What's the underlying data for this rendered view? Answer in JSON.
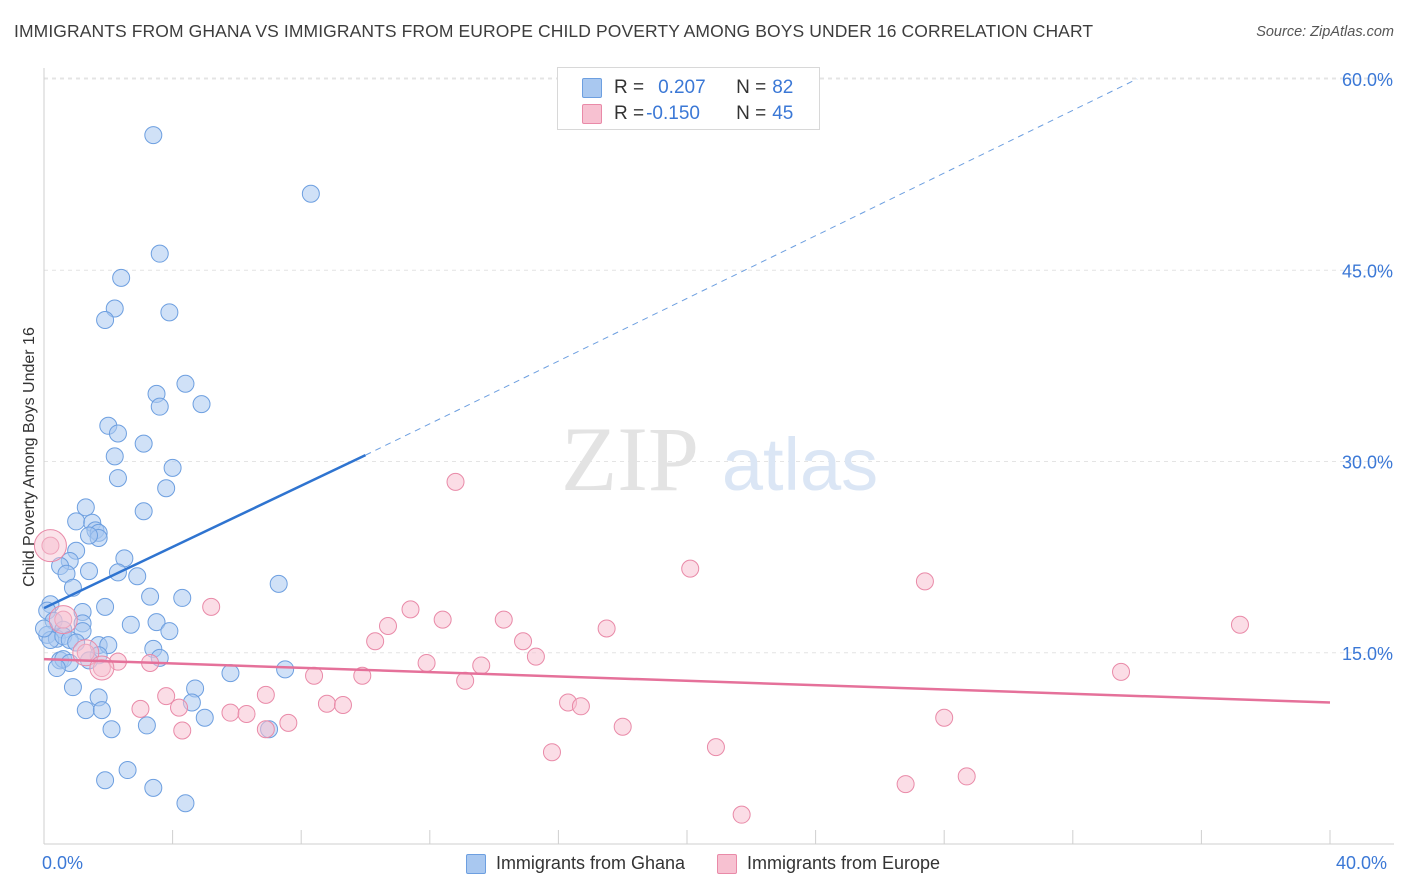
{
  "header": {
    "title": "IMMIGRANTS FROM GHANA VS IMMIGRANTS FROM EUROPE CHILD POVERTY AMONG BOYS UNDER 16 CORRELATION CHART",
    "source": "Source: ZipAtlas.com"
  },
  "watermark": {
    "zip": "ZIP",
    "atlas": "atlas"
  },
  "legend": {
    "rows": [
      {
        "r_label": "R = ",
        "r_value": "0.207",
        "n_label": "N = ",
        "n_value": "82",
        "color": "#a9c8f0",
        "border": "#6d9fe0"
      },
      {
        "r_label": "R = ",
        "r_value": "-0.150",
        "n_label": "N = ",
        "n_value": "45",
        "color": "#f7c1d1",
        "border": "#e98aa8"
      }
    ]
  },
  "bottom_legend": {
    "items": [
      {
        "label": "Immigrants from Ghana",
        "color": "#a9c8f0",
        "border": "#6d9fe0"
      },
      {
        "label": "Immigrants from Europe",
        "color": "#f7c1d1",
        "border": "#e98aa8"
      }
    ]
  },
  "axis": {
    "x_tick_min": "0.0%",
    "x_tick_max": "40.0%",
    "y_ticks": [
      "15.0%",
      "30.0%",
      "45.0%",
      "60.0%"
    ],
    "y_title": "Child Poverty Among Boys Under 16"
  },
  "chart_data": {
    "type": "scatter",
    "title": "IMMIGRANTS FROM GHANA VS IMMIGRANTS FROM EUROPE CHILD POVERTY AMONG BOYS UNDER 16 CORRELATION CHART",
    "xlabel": "",
    "ylabel": "Child Poverty Among Boys Under 16",
    "xlim": [
      0,
      40
    ],
    "ylim": [
      0,
      63
    ],
    "x_unit": "%",
    "y_unit": "%",
    "y_ticks": [
      15,
      30,
      45,
      60
    ],
    "grid": true,
    "legend_position": "bottom-center",
    "series": [
      {
        "name": "Immigrants from Ghana",
        "color": "#6d9fe0",
        "fill": "#a9c8f0",
        "r": 0.207,
        "n": 82,
        "trend": {
          "x": [
            0,
            10
          ],
          "y": [
            18.5,
            30.5
          ],
          "extended_to": [
            34,
            60
          ]
        },
        "points": [
          [
            3.4,
            55.6
          ],
          [
            8.3,
            51.0
          ],
          [
            3.6,
            46.3
          ],
          [
            2.4,
            44.4
          ],
          [
            2.2,
            42.0
          ],
          [
            3.9,
            41.7
          ],
          [
            1.9,
            41.1
          ],
          [
            4.4,
            36.1
          ],
          [
            3.5,
            35.3
          ],
          [
            4.9,
            34.5
          ],
          [
            3.6,
            34.3
          ],
          [
            2.0,
            32.8
          ],
          [
            2.3,
            32.2
          ],
          [
            3.1,
            31.4
          ],
          [
            2.2,
            30.4
          ],
          [
            4.0,
            29.5
          ],
          [
            2.3,
            28.7
          ],
          [
            3.8,
            27.9
          ],
          [
            1.3,
            26.4
          ],
          [
            3.1,
            26.1
          ],
          [
            1.0,
            25.3
          ],
          [
            1.5,
            25.2
          ],
          [
            1.6,
            24.6
          ],
          [
            1.7,
            24.4
          ],
          [
            1.7,
            24.0
          ],
          [
            1.4,
            24.2
          ],
          [
            1.0,
            23.0
          ],
          [
            2.5,
            22.4
          ],
          [
            0.8,
            22.2
          ],
          [
            0.5,
            21.8
          ],
          [
            1.4,
            21.4
          ],
          [
            2.3,
            21.3
          ],
          [
            0.7,
            21.2
          ],
          [
            2.9,
            21.0
          ],
          [
            7.3,
            20.4
          ],
          [
            0.9,
            20.1
          ],
          [
            3.3,
            19.4
          ],
          [
            4.3,
            19.3
          ],
          [
            0.2,
            18.8
          ],
          [
            0.1,
            18.3
          ],
          [
            1.9,
            18.6
          ],
          [
            1.2,
            18.2
          ],
          [
            0.3,
            17.5
          ],
          [
            1.2,
            17.3
          ],
          [
            3.5,
            17.4
          ],
          [
            2.7,
            17.2
          ],
          [
            0.6,
            16.8
          ],
          [
            1.2,
            16.7
          ],
          [
            3.9,
            16.7
          ],
          [
            0.1,
            16.4
          ],
          [
            0.4,
            16.1
          ],
          [
            0.2,
            16.0
          ],
          [
            0.6,
            16.3
          ],
          [
            0.8,
            16.0
          ],
          [
            1.0,
            15.8
          ],
          [
            1.7,
            15.6
          ],
          [
            2.0,
            15.6
          ],
          [
            3.4,
            15.3
          ],
          [
            1.7,
            14.8
          ],
          [
            3.6,
            14.6
          ],
          [
            0.5,
            14.4
          ],
          [
            0.6,
            14.5
          ],
          [
            1.4,
            14.4
          ],
          [
            0.8,
            14.2
          ],
          [
            0.4,
            13.8
          ],
          [
            7.5,
            13.7
          ],
          [
            5.8,
            13.4
          ],
          [
            0.9,
            12.3
          ],
          [
            4.7,
            12.2
          ],
          [
            1.7,
            11.5
          ],
          [
            4.6,
            11.1
          ],
          [
            1.3,
            10.5
          ],
          [
            1.8,
            10.5
          ],
          [
            5.0,
            9.9
          ],
          [
            3.2,
            9.3
          ],
          [
            7.0,
            9.0
          ],
          [
            2.1,
            9.0
          ],
          [
            2.6,
            5.8
          ],
          [
            1.9,
            5.0
          ],
          [
            3.4,
            4.4
          ],
          [
            4.4,
            3.2
          ],
          [
            0.0,
            16.9
          ]
        ]
      },
      {
        "name": "Immigrants from Europe",
        "color": "#e98aa8",
        "fill": "#f7c1d1",
        "r": -0.15,
        "n": 45,
        "trend": {
          "x": [
            0,
            40
          ],
          "y": [
            14.5,
            11.1
          ]
        },
        "points": [
          [
            0.2,
            23.4
          ],
          [
            0.6,
            17.6
          ],
          [
            1.3,
            15.0
          ],
          [
            1.8,
            13.8
          ],
          [
            2.3,
            14.3
          ],
          [
            3.3,
            14.2
          ],
          [
            3.0,
            10.6
          ],
          [
            3.8,
            11.6
          ],
          [
            4.3,
            8.9
          ],
          [
            4.2,
            10.7
          ],
          [
            5.2,
            18.6
          ],
          [
            5.8,
            10.3
          ],
          [
            6.3,
            10.2
          ],
          [
            6.9,
            11.7
          ],
          [
            6.9,
            9.0
          ],
          [
            7.6,
            9.5
          ],
          [
            8.4,
            13.2
          ],
          [
            8.8,
            11.0
          ],
          [
            9.3,
            10.9
          ],
          [
            9.9,
            13.2
          ],
          [
            10.3,
            15.9
          ],
          [
            10.7,
            17.1
          ],
          [
            11.4,
            18.4
          ],
          [
            11.9,
            14.2
          ],
          [
            12.4,
            17.6
          ],
          [
            12.8,
            28.4
          ],
          [
            13.1,
            12.8
          ],
          [
            13.6,
            14.0
          ],
          [
            14.3,
            17.6
          ],
          [
            14.9,
            15.9
          ],
          [
            15.3,
            14.7
          ],
          [
            15.8,
            7.2
          ],
          [
            16.3,
            11.1
          ],
          [
            16.7,
            10.8
          ],
          [
            17.5,
            16.9
          ],
          [
            18.0,
            9.2
          ],
          [
            20.1,
            21.6
          ],
          [
            20.9,
            7.6
          ],
          [
            21.7,
            2.3
          ],
          [
            26.8,
            4.7
          ],
          [
            27.4,
            20.6
          ],
          [
            28.0,
            9.9
          ],
          [
            28.7,
            5.3
          ],
          [
            33.5,
            13.5
          ],
          [
            37.2,
            17.2
          ]
        ]
      }
    ]
  }
}
